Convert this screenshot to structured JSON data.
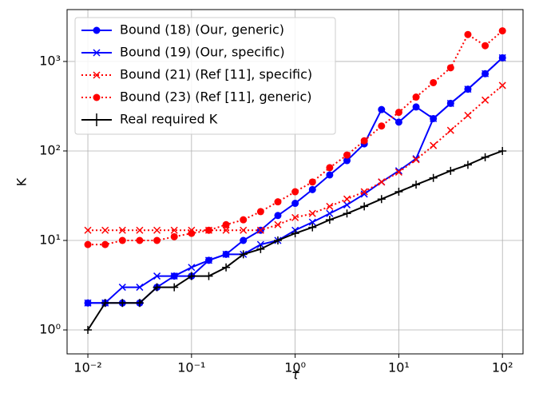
{
  "chart_data": {
    "type": "line",
    "x_label": "τ",
    "y_label": "K",
    "x": [
      0.01,
      0.01468,
      0.02154,
      0.03162,
      0.04642,
      0.06813,
      0.1,
      0.1468,
      0.2154,
      0.3162,
      0.4642,
      0.6813,
      1,
      1.468,
      2.154,
      3.162,
      4.642,
      6.813,
      10,
      14.68,
      21.54,
      31.62,
      46.42,
      68.13,
      100
    ],
    "series": [
      {
        "name": "Bound (18) (Our, generic)",
        "color": "#0000ff",
        "marker": "circle",
        "linestyle": "solid",
        "values": [
          2,
          2,
          2,
          2,
          3,
          4,
          4,
          6,
          7,
          10,
          13,
          19,
          26,
          37,
          54,
          78,
          120,
          290,
          210,
          310,
          230,
          340,
          490,
          730,
          1100
        ]
      },
      {
        "name": "Bound (19) (Our, specific)",
        "color": "#0000ff",
        "marker": "x",
        "linestyle": "solid",
        "values": [
          2,
          2,
          3,
          3,
          4,
          4,
          5,
          6,
          7,
          7,
          9,
          10,
          13,
          16,
          20,
          25,
          33,
          45,
          60,
          82,
          230,
          340,
          490,
          730,
          1100
        ]
      },
      {
        "name": "Bound (21) (Ref [11], specific)",
        "color": "#ff0000",
        "marker": "x",
        "linestyle": "dotted",
        "values": [
          13,
          13,
          13,
          13,
          13,
          13,
          13,
          13,
          13,
          13,
          13,
          15,
          18,
          20,
          24,
          29,
          35,
          45,
          58,
          80,
          115,
          170,
          250,
          370,
          540
        ]
      },
      {
        "name": "Bound (23) (Ref [11], generic)",
        "color": "#ff0000",
        "marker": "circle",
        "linestyle": "dotted",
        "values": [
          9,
          9,
          10,
          10,
          10,
          11,
          12,
          13,
          15,
          17,
          21,
          27,
          35,
          45,
          65,
          90,
          130,
          190,
          270,
          400,
          580,
          850,
          2000,
          1500,
          2200
        ]
      },
      {
        "name": "Real required K",
        "color": "#000000",
        "marker": "plus",
        "linestyle": "solid",
        "values": [
          1,
          2,
          2,
          2,
          3,
          3,
          4,
          4,
          5,
          7,
          8,
          10,
          12,
          14,
          17,
          20,
          24,
          29,
          35,
          42,
          50,
          60,
          70,
          85,
          100
        ]
      }
    ],
    "xscale": "log",
    "yscale": "log",
    "xlim": [
      0.0063,
      158
    ],
    "ylim": [
      0.54,
      3800
    ],
    "xticks": [
      {
        "value": 0.01,
        "label": "10⁻²"
      },
      {
        "value": 0.1,
        "label": "10⁻¹"
      },
      {
        "value": 1,
        "label": "10⁰"
      },
      {
        "value": 10,
        "label": "10¹"
      },
      {
        "value": 100,
        "label": "10²"
      }
    ],
    "yticks": [
      {
        "value": 1,
        "label": "10⁰"
      },
      {
        "value": 10,
        "label": "10¹"
      },
      {
        "value": 100,
        "label": "10²"
      },
      {
        "value": 1000,
        "label": "10³"
      }
    ],
    "grid": true,
    "legend": "upper left"
  }
}
